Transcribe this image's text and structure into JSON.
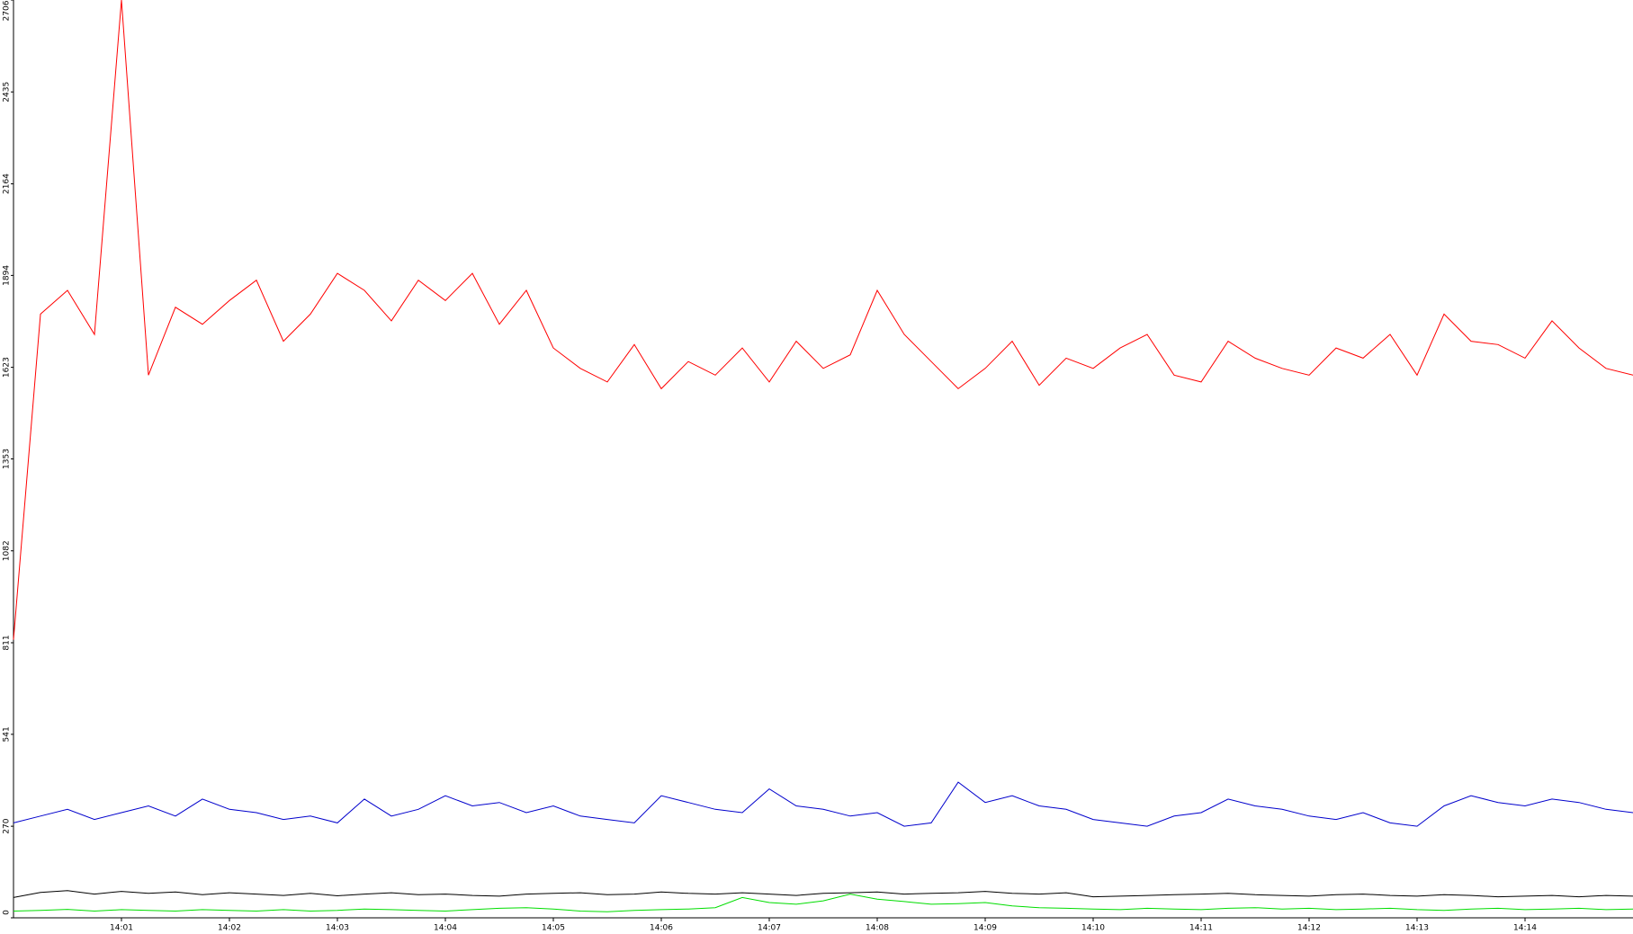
{
  "chart_data": {
    "type": "line",
    "x": [
      840,
      840.25,
      840.5,
      840.75,
      841,
      841.25,
      841.5,
      841.75,
      842,
      842.25,
      842.5,
      842.75,
      843,
      843.25,
      843.5,
      843.75,
      844,
      844.25,
      844.5,
      844.75,
      845,
      845.25,
      845.5,
      845.75,
      846,
      846.25,
      846.5,
      846.75,
      847,
      847.25,
      847.5,
      847.75,
      848,
      848.25,
      848.5,
      848.75,
      849,
      849.25,
      849.5,
      849.75,
      850,
      850.25,
      850.5,
      850.75,
      851,
      851.25,
      851.5,
      851.75,
      852,
      852.25,
      852.5,
      852.75,
      853,
      853.25,
      853.5,
      853.75,
      854,
      854.25,
      854.5,
      854.75,
      855
    ],
    "series": [
      {
        "color": "#ff0000",
        "values": [
          820,
          1780,
          1850,
          1720,
          2706,
          1600,
          1800,
          1750,
          1820,
          1880,
          1700,
          1780,
          1900,
          1850,
          1760,
          1880,
          1820,
          1900,
          1750,
          1850,
          1680,
          1620,
          1580,
          1690,
          1560,
          1640,
          1600,
          1680,
          1580,
          1700,
          1620,
          1660,
          1850,
          1720,
          1640,
          1560,
          1620,
          1700,
          1570,
          1650,
          1620,
          1680,
          1720,
          1600,
          1580,
          1700,
          1650,
          1620,
          1600,
          1680,
          1650,
          1720,
          1600,
          1780,
          1700,
          1690,
          1650,
          1760,
          1680,
          1620,
          1600
        ]
      },
      {
        "color": "#0000cc",
        "values": [
          280,
          300,
          320,
          290,
          310,
          330,
          300,
          350,
          320,
          310,
          290,
          300,
          280,
          350,
          300,
          320,
          360,
          330,
          340,
          310,
          330,
          300,
          290,
          280,
          360,
          340,
          320,
          310,
          380,
          330,
          320,
          300,
          310,
          270,
          280,
          400,
          340,
          360,
          330,
          320,
          290,
          280,
          270,
          300,
          310,
          350,
          330,
          320,
          300,
          290,
          310,
          280,
          270,
          330,
          360,
          340,
          330,
          350,
          340,
          320,
          310
        ]
      },
      {
        "color": "#000000",
        "values": [
          60,
          75,
          80,
          70,
          78,
          72,
          76,
          68,
          74,
          70,
          66,
          72,
          65,
          70,
          74,
          68,
          70,
          66,
          64,
          70,
          72,
          74,
          68,
          70,
          76,
          72,
          70,
          74,
          70,
          66,
          72,
          74,
          76,
          70,
          72,
          74,
          78,
          72,
          70,
          74,
          62,
          64,
          66,
          68,
          70,
          72,
          68,
          66,
          64,
          68,
          70,
          66,
          64,
          68,
          66,
          62,
          64,
          66,
          62,
          66,
          64
        ]
      },
      {
        "color": "#00dd00",
        "values": [
          20,
          22,
          25,
          20,
          24,
          22,
          20,
          24,
          22,
          20,
          24,
          20,
          22,
          26,
          24,
          22,
          20,
          24,
          28,
          30,
          26,
          20,
          18,
          22,
          24,
          26,
          30,
          60,
          45,
          40,
          50,
          70,
          55,
          48,
          40,
          42,
          45,
          35,
          30,
          28,
          26,
          24,
          28,
          26,
          24,
          28,
          30,
          26,
          28,
          24,
          26,
          28,
          24,
          22,
          26,
          28,
          24,
          26,
          28,
          24,
          26
        ]
      }
    ],
    "xlim": [
      840,
      855
    ],
    "xticks": [
      {
        "value": 841,
        "label": "14:01"
      },
      {
        "value": 842,
        "label": "14:02"
      },
      {
        "value": 843,
        "label": "14:03"
      },
      {
        "value": 844,
        "label": "14:04"
      },
      {
        "value": 845,
        "label": "14:05"
      },
      {
        "value": 846,
        "label": "14:06"
      },
      {
        "value": 847,
        "label": "14:07"
      },
      {
        "value": 848,
        "label": "14:08"
      },
      {
        "value": 849,
        "label": "14:09"
      },
      {
        "value": 850,
        "label": "14:10"
      },
      {
        "value": 851,
        "label": "14:11"
      },
      {
        "value": 852,
        "label": "14:12"
      },
      {
        "value": 853,
        "label": "14:13"
      },
      {
        "value": 854,
        "label": "14:14"
      }
    ],
    "ylim": [
      0,
      2706
    ],
    "yticks": [
      0,
      270,
      541,
      811,
      1082,
      1353,
      1623,
      1894,
      2164,
      2435,
      2706
    ]
  }
}
